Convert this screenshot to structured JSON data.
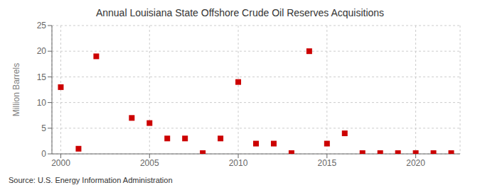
{
  "chart_data": {
    "type": "scatter",
    "title": "Annual Louisiana State Offshore Crude Oil Reserves Acquisitions",
    "ylabel": "Million Barrels",
    "source": "Source: U.S. Energy Information Administration",
    "x": [
      2000,
      2001,
      2002,
      2004,
      2005,
      2006,
      2007,
      2008,
      2009,
      2010,
      2011,
      2012,
      2013,
      2014,
      2015,
      2016,
      2017,
      2018,
      2019,
      2020,
      2021,
      2022
    ],
    "values": [
      13.0,
      1.0,
      19.0,
      7.0,
      6.0,
      3.0,
      3.0,
      0.15,
      3.0,
      14.0,
      2.0,
      2.0,
      0.15,
      20.0,
      2.0,
      4.0,
      0.15,
      0.15,
      0.15,
      0.15,
      0.15,
      0.15
    ],
    "color": "#cc0000",
    "marker": "square",
    "xlim": [
      1999.5,
      2022.5
    ],
    "xticks": [
      2000,
      2005,
      2010,
      2015,
      2020
    ],
    "ylim": [
      0,
      25
    ],
    "yticks": [
      0,
      5,
      10,
      15,
      20,
      25
    ],
    "grid": true
  }
}
